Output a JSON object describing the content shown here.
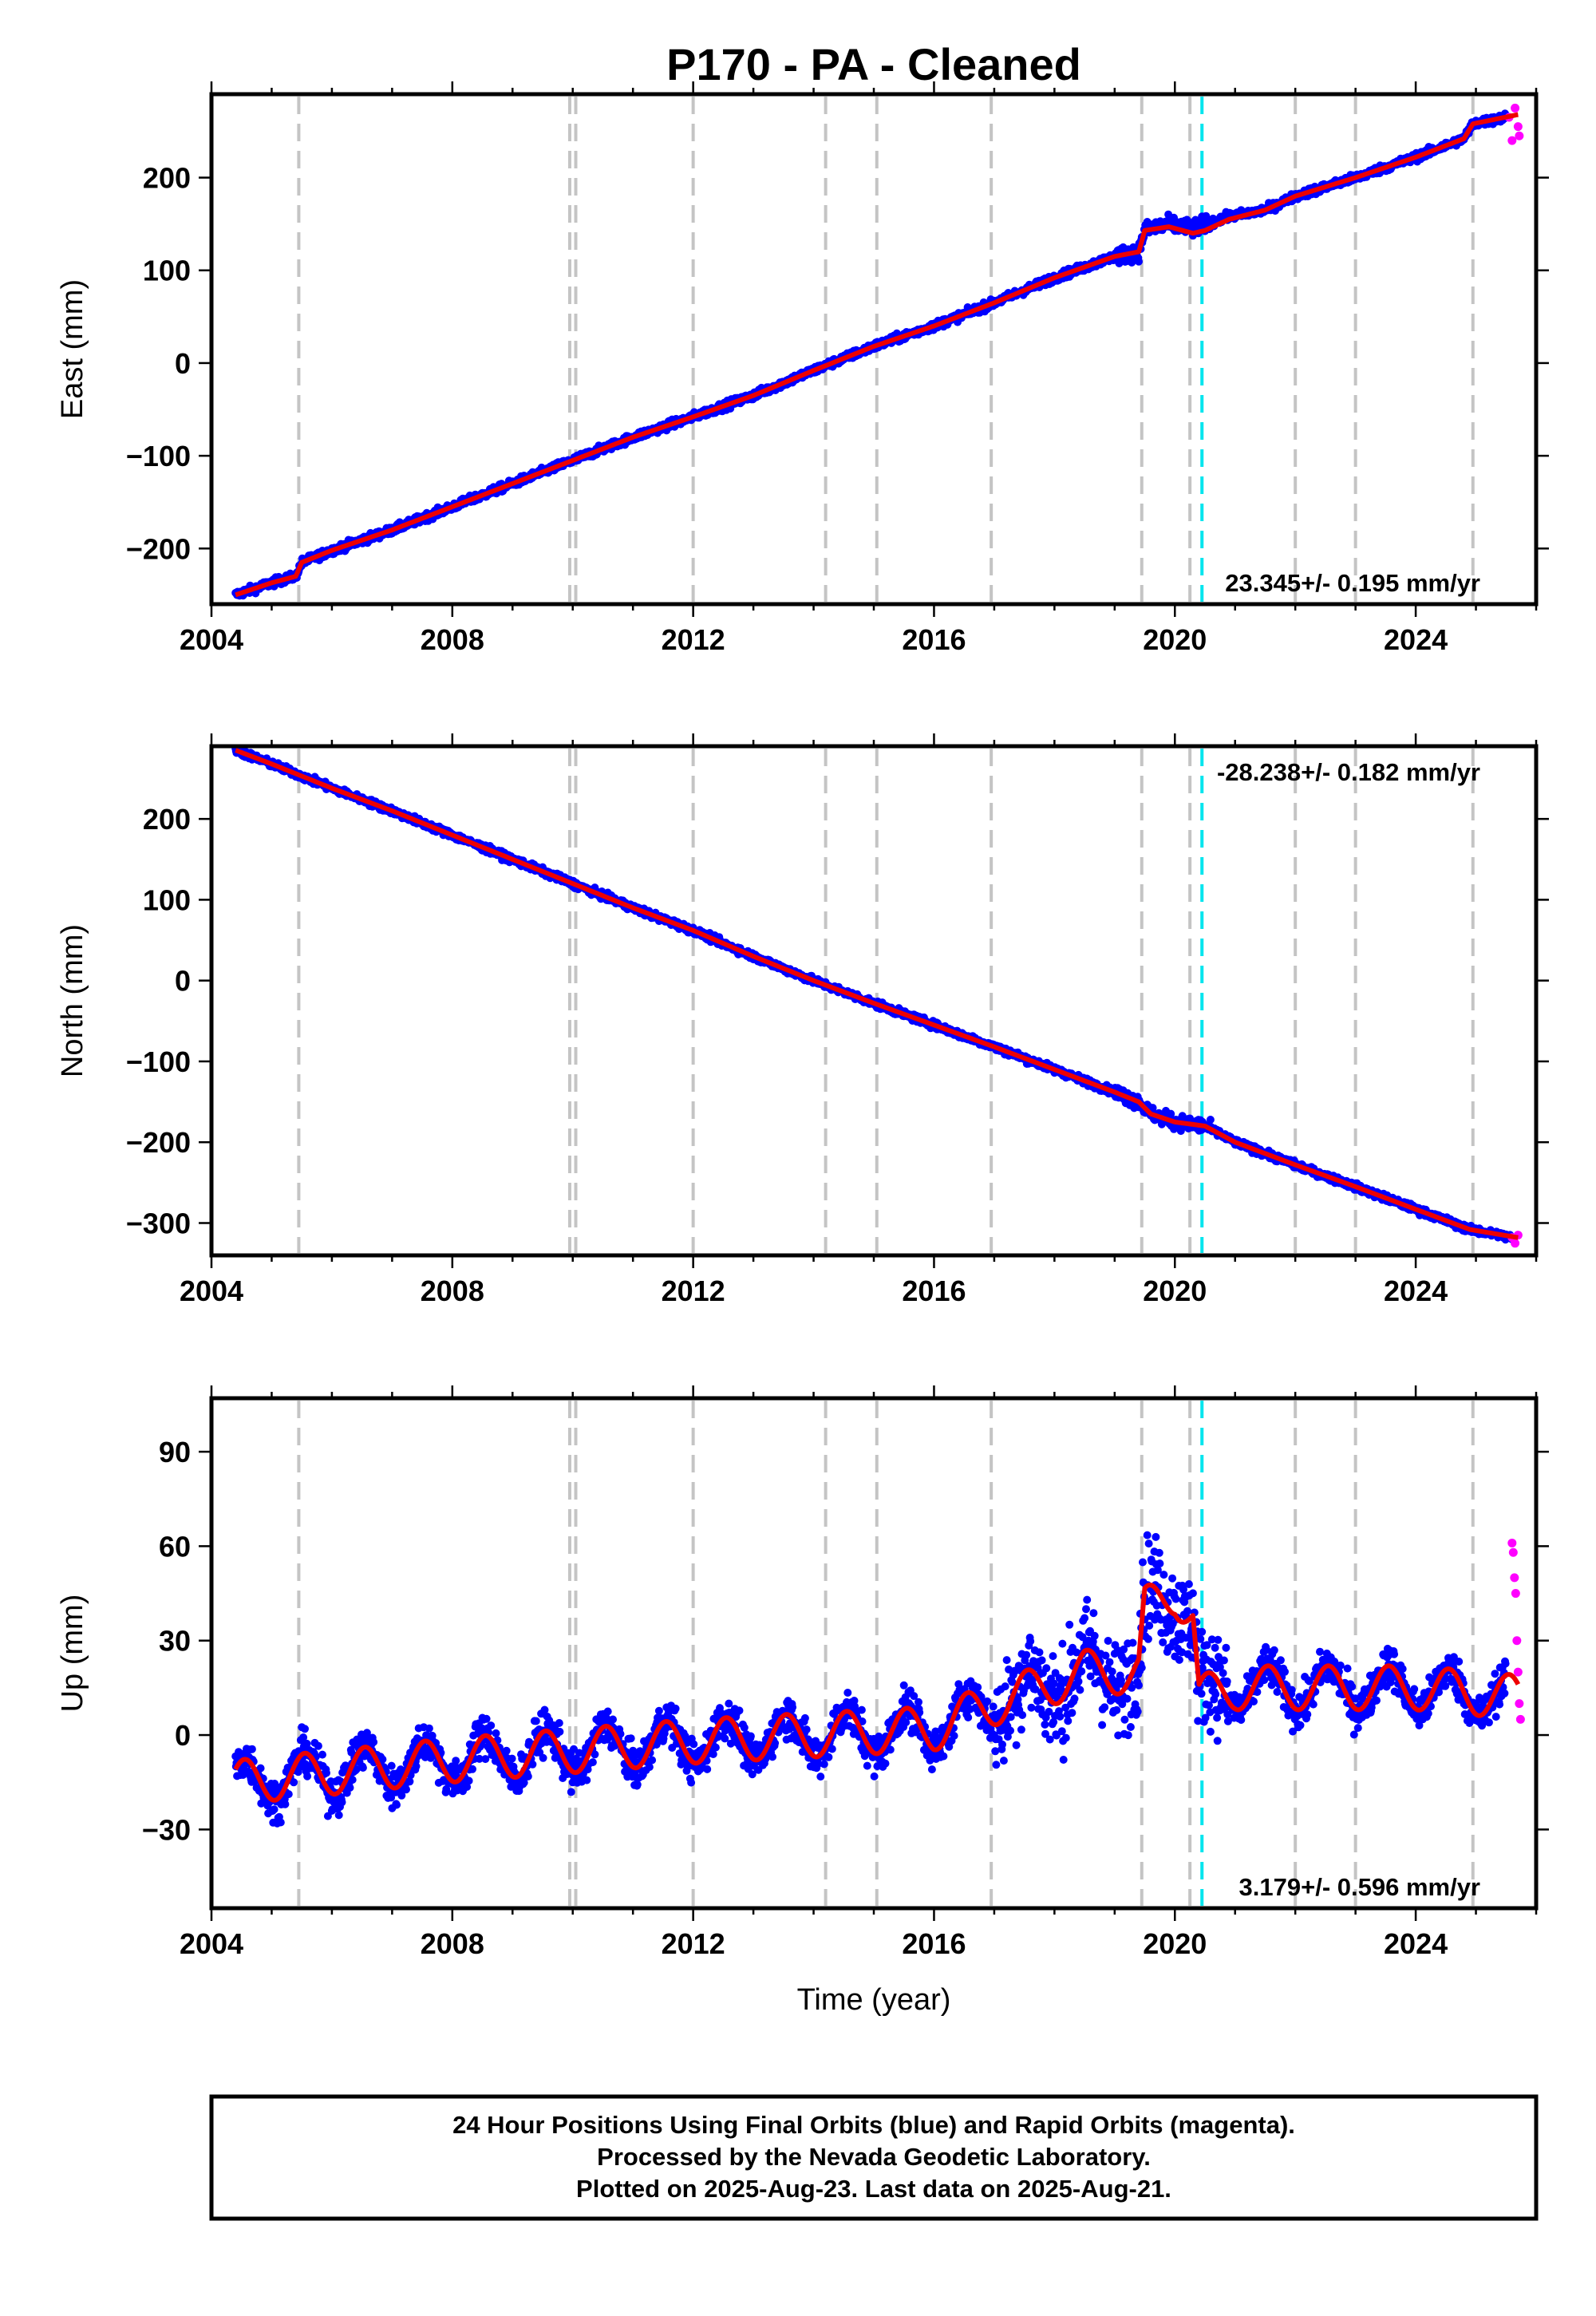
{
  "title": "P170  - PA - Cleaned",
  "colors": {
    "final": "#0000ff",
    "rapid": "#ff00ff",
    "model": "#ee0000",
    "equipment": "#c4c4c4",
    "earthquake": "#00e5ee"
  },
  "x_axis": {
    "label": "Time (year)",
    "range": [
      2004.0,
      2026.0
    ],
    "ticks": [
      2004,
      2008,
      2012,
      2016,
      2020,
      2024
    ],
    "tick_labels": [
      "2004",
      "2008",
      "2012",
      "2016",
      "2020",
      "2024"
    ]
  },
  "chart_data": [
    {
      "type": "scatter",
      "component": "east",
      "ylabel": "East (mm)",
      "ylim": [
        -260,
        290
      ],
      "yticks": [
        -200,
        -100,
        0,
        100,
        200
      ],
      "ytick_labels": [
        "−200",
        "−100",
        "0",
        "100",
        "200"
      ],
      "rate_label": "23.345+/- 0.195 mm/yr",
      "rate_position": "bottom-right",
      "series": [
        {
          "name": "Final Orbits (blue)",
          "style": "points",
          "x": [
            2004.4,
            2005.0,
            2005.4,
            2005.5,
            2006.0,
            2007.0,
            2008.0,
            2009.0,
            2010.0,
            2011.0,
            2012.0,
            2013.0,
            2014.0,
            2015.0,
            2016.0,
            2017.0,
            2018.0,
            2019.0,
            2019.4,
            2019.5,
            2019.9,
            2020.3,
            2020.5,
            2020.9,
            2021.5,
            2022.0,
            2023.0,
            2024.0,
            2024.8,
            2024.95,
            2025.5
          ],
          "y": [
            -250,
            -237,
            -230,
            -215,
            -202,
            -180,
            -155,
            -130,
            -105,
            -80,
            -58,
            -35,
            -8,
            18,
            40,
            65,
            92,
            115,
            120,
            143,
            150,
            145,
            150,
            158,
            165,
            180,
            200,
            222,
            242,
            258,
            265
          ]
        },
        {
          "name": "Rapid Orbits (magenta)",
          "style": "points",
          "x": [
            2025.55,
            2025.6,
            2025.65,
            2025.7,
            2025.72
          ],
          "y": [
            265,
            240,
            275,
            255,
            245
          ]
        },
        {
          "name": "Model",
          "style": "line",
          "x": [
            2004.4,
            2005.0,
            2005.4,
            2005.5,
            2006.0,
            2007.0,
            2008.0,
            2009.0,
            2010.0,
            2011.0,
            2012.0,
            2013.0,
            2014.0,
            2015.0,
            2016.0,
            2017.0,
            2018.0,
            2019.0,
            2019.4,
            2019.5,
            2019.9,
            2020.3,
            2020.5,
            2020.9,
            2021.5,
            2022.0,
            2023.0,
            2024.0,
            2024.8,
            2024.95,
            2025.7
          ],
          "y": [
            -250,
            -237,
            -230,
            -215,
            -202,
            -180,
            -155,
            -130,
            -105,
            -80,
            -58,
            -35,
            -8,
            18,
            40,
            65,
            92,
            115,
            120,
            143,
            147,
            140,
            143,
            155,
            165,
            180,
            200,
            222,
            242,
            258,
            268
          ]
        }
      ]
    },
    {
      "type": "scatter",
      "component": "north",
      "ylabel": "North (mm)",
      "ylim": [
        -340,
        290
      ],
      "yticks": [
        -300,
        -200,
        -100,
        0,
        100,
        200
      ],
      "ytick_labels": [
        "−300",
        "−200",
        "−100",
        "0",
        "100",
        "200"
      ],
      "rate_label": "-28.238+/- 0.182 mm/yr",
      "rate_position": "top-right",
      "series": [
        {
          "name": "Final Orbits (blue)",
          "style": "points",
          "x": [
            2004.4,
            2005.0,
            2006.0,
            2007.0,
            2008.0,
            2009.0,
            2010.0,
            2011.0,
            2012.0,
            2013.0,
            2014.0,
            2015.0,
            2016.0,
            2017.0,
            2018.0,
            2019.0,
            2019.4,
            2019.6,
            2020.0,
            2020.5,
            2021.0,
            2022.0,
            2023.0,
            2024.0,
            2024.9,
            2025.6
          ],
          "y": [
            285,
            268,
            238,
            210,
            180,
            150,
            120,
            90,
            62,
            30,
            0,
            -28,
            -55,
            -82,
            -110,
            -138,
            -150,
            -165,
            -175,
            -180,
            -200,
            -228,
            -255,
            -283,
            -308,
            -318
          ]
        },
        {
          "name": "Rapid Orbits (magenta)",
          "style": "points",
          "x": [
            2025.6,
            2025.65,
            2025.7
          ],
          "y": [
            -318,
            -325,
            -315
          ]
        },
        {
          "name": "Model",
          "style": "line",
          "x": [
            2004.4,
            2005.0,
            2006.0,
            2007.0,
            2008.0,
            2009.0,
            2010.0,
            2011.0,
            2012.0,
            2013.0,
            2014.0,
            2015.0,
            2016.0,
            2017.0,
            2018.0,
            2019.0,
            2019.4,
            2019.6,
            2020.0,
            2020.5,
            2021.0,
            2022.0,
            2023.0,
            2024.0,
            2024.9,
            2025.7
          ],
          "y": [
            285,
            268,
            238,
            210,
            180,
            150,
            120,
            90,
            62,
            30,
            0,
            -28,
            -55,
            -82,
            -110,
            -138,
            -150,
            -165,
            -175,
            -180,
            -200,
            -228,
            -255,
            -283,
            -308,
            -318
          ]
        }
      ]
    },
    {
      "type": "scatter",
      "component": "up",
      "ylabel": "Up (mm)",
      "ylim": [
        -55,
        107
      ],
      "yticks": [
        -30,
        0,
        30,
        60,
        90
      ],
      "ytick_labels": [
        "−30",
        "0",
        "30",
        "60",
        "90"
      ],
      "rate_label": "3.179+/- 0.596 mm/yr",
      "rate_position": "bottom-right",
      "seasonal_amplitude_mm": 7,
      "series": [
        {
          "name": "Final Orbits (blue)",
          "style": "points",
          "x": [
            2004.4,
            2008.0,
            2012.0,
            2016.0,
            2017.0,
            2018.5,
            2019.4,
            2019.5,
            2020.0,
            2020.3,
            2020.4,
            2021.0,
            2024.0,
            2025.5
          ],
          "y": [
            -15,
            -8,
            -2,
            2,
            10,
            20,
            20,
            40,
            45,
            38,
            12,
            15,
            15,
            12
          ]
        },
        {
          "name": "Rapid Orbits (magenta)",
          "style": "points",
          "x": [
            2025.6,
            2025.62,
            2025.64,
            2025.66,
            2025.68,
            2025.7,
            2025.72,
            2025.74
          ],
          "y": [
            61,
            58,
            50,
            45,
            30,
            20,
            10,
            5
          ]
        },
        {
          "name": "Model",
          "style": "line",
          "x": [
            2004.4,
            2008.0,
            2012.0,
            2016.0,
            2017.0,
            2018.5,
            2019.4,
            2019.5,
            2020.0,
            2020.3,
            2020.4,
            2021.0,
            2024.0,
            2025.7
          ],
          "y": [
            -15,
            -8,
            -2,
            2,
            10,
            20,
            20,
            40,
            45,
            38,
            12,
            15,
            15,
            12
          ]
        }
      ]
    }
  ],
  "equipment_changes": [
    2005.45,
    2009.95,
    2010.05,
    2012.0,
    2014.2,
    2015.05,
    2016.95,
    2019.45,
    2020.25,
    2022.0,
    2023.0,
    2024.95
  ],
  "earthquakes": [
    2020.45
  ],
  "footer": {
    "line1": "24 Hour Positions Using Final Orbits (blue) and Rapid Orbits (magenta).",
    "line2": "Processed by the Nevada Geodetic Laboratory.",
    "line3": "Plotted on 2025-Aug-23. Last data on 2025-Aug-21."
  }
}
